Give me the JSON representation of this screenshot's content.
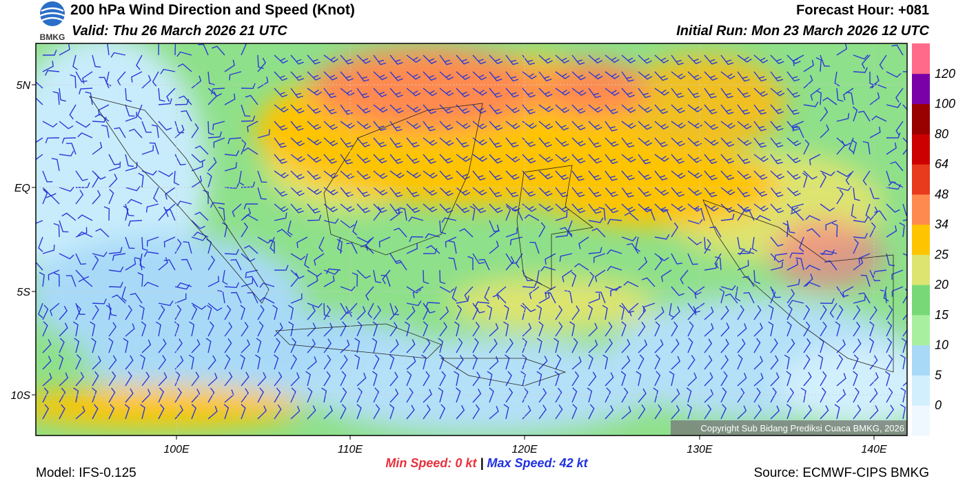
{
  "header": {
    "title": "200 hPa Wind Direction and Speed (Knot)",
    "valid": "Valid: Thu 26 March 2026 21 UTC",
    "forecast_hour": "Forecast Hour: +081",
    "initial_run": "Initial Run: Mon 23 March 2026 12 UTC",
    "logo_text": "BMKG"
  },
  "map": {
    "lat_labels": [
      "5N",
      "EQ",
      "5S",
      "10S"
    ],
    "lon_labels": [
      "100E",
      "110E",
      "120E",
      "130E",
      "140E"
    ],
    "copyright": "Copyright Sub Bidang Prediksi Cuaca BMKG, 2026"
  },
  "legend": {
    "levels": [
      0,
      5,
      10,
      15,
      20,
      25,
      34,
      48,
      64,
      80,
      100,
      120
    ],
    "colors": [
      "#f0f8ff",
      "#d2effd",
      "#a8daf8",
      "#a8f0a0",
      "#78d878",
      "#dde470",
      "#ffc400",
      "#ff8a50",
      "#e83a1c",
      "#cc0000",
      "#990000",
      "#7a00a8",
      "#ff6a8a"
    ]
  },
  "stats": {
    "min_label": "Min Speed:",
    "min_value": "0 kt",
    "separator": "|",
    "max_label": "Max Speed:",
    "max_value": "42 kt"
  },
  "footer": {
    "model": "Model: IFS-0.125",
    "source": "Source: ECMWF-CIPS BMKG"
  }
}
